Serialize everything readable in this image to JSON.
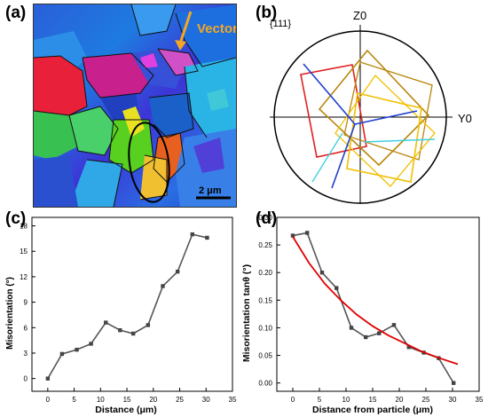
{
  "panels": {
    "a": {
      "label": "(a)",
      "annotation": "Vector",
      "scale_bar": "2 μm"
    },
    "b": {
      "label": "(b)",
      "projection": "{111}",
      "axis_top": "Z0",
      "axis_right": "Y0"
    },
    "c": {
      "label": "(c)"
    },
    "d": {
      "label": "(d)"
    }
  },
  "colors": {
    "vector_arrow": "#f5a623",
    "line_series": "#555555",
    "fit_curve": "#e00000",
    "pf_red": "#e02020",
    "pf_gold": "#b8860b",
    "pf_yellow": "#f0c000",
    "pf_blue": "#2040d0",
    "pf_cyan": "#40d0e0"
  },
  "chart_data": [
    {
      "type": "line",
      "xlabel": "Distance (μm)",
      "ylabel": "Misorientation (°)",
      "xlim": [
        -3,
        35
      ],
      "ylim": [
        -1.5,
        19
      ],
      "xticks": [
        0,
        5,
        10,
        15,
        20,
        25,
        30,
        35
      ],
      "yticks": [
        0,
        3,
        6,
        9,
        12,
        15,
        18
      ],
      "grid": false,
      "x": [
        0,
        2.7,
        5.5,
        8.2,
        11,
        13.7,
        16.2,
        19,
        21.8,
        24.6,
        27.4,
        30.2
      ],
      "y": [
        0,
        2.9,
        3.4,
        4.1,
        6.6,
        5.7,
        5.3,
        6.3,
        10.9,
        12.6,
        17.0,
        16.6
      ]
    },
    {
      "type": "line",
      "xlabel": "Distance from particle (μm)",
      "ylabel": "Misorientation tanθ (°)",
      "xlim": [
        -3,
        35
      ],
      "ylim": [
        -0.015,
        0.3
      ],
      "xticks": [
        0,
        5,
        10,
        15,
        20,
        25,
        30,
        35
      ],
      "yticks": [
        "0.00",
        "0.05",
        "0.10",
        "0.15",
        "0.20",
        "0.25",
        "0.30"
      ],
      "grid": false,
      "series": [
        {
          "x": [
            0,
            2.7,
            5.5,
            8.2,
            11,
            13.7,
            16.2,
            19,
            21.8,
            24.6,
            27.4,
            30.2
          ],
          "y": [
            0.267,
            0.272,
            0.2,
            0.172,
            0.1,
            0.083,
            0.09,
            0.105,
            0.065,
            0.055,
            0.045,
            0.0
          ]
        },
        {
          "x": [
            0,
            3,
            6,
            9,
            12,
            15,
            18,
            21,
            24,
            27,
            31
          ],
          "y": [
            0.265,
            0.218,
            0.18,
            0.15,
            0.124,
            0.103,
            0.086,
            0.072,
            0.058,
            0.047,
            0.034
          ]
        }
      ]
    }
  ]
}
